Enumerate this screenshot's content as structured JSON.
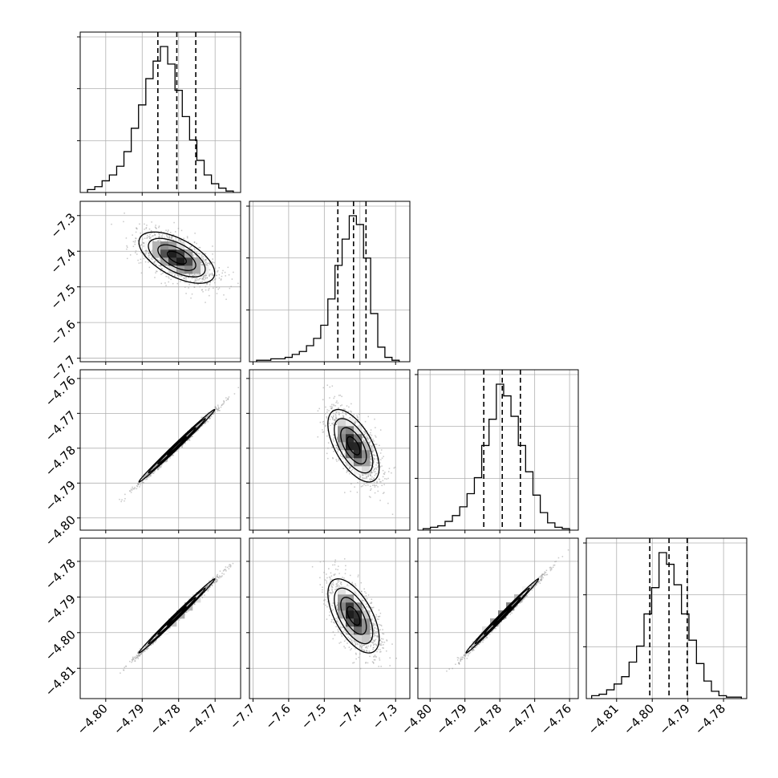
{
  "colors": {
    "ink": "#000000",
    "grid": "#b0b0b0",
    "scatter": "#9a9a9a",
    "background": "#ffffff"
  },
  "chart_data": {
    "type": "corner",
    "grid": true,
    "parameters": [
      {
        "range": [
          -4.807,
          -4.763
        ],
        "ticks": [
          -4.8,
          -4.79,
          -4.78,
          -4.77
        ],
        "tick_labels": [
          "−4.80",
          "−4.79",
          "−4.78",
          "−4.77"
        ],
        "mean": -4.7805,
        "sd": 0.0052,
        "quantiles": [
          -4.7857,
          -4.7805,
          -4.7753
        ],
        "histogram": {
          "bins": 20,
          "range": [
            -4.805,
            -4.765
          ],
          "counts": [
            2,
            4,
            8,
            12,
            18,
            28,
            44,
            60,
            78,
            90,
            100,
            88,
            70,
            52,
            36,
            22,
            12,
            6,
            3,
            1
          ]
        }
      },
      {
        "range": [
          -7.71,
          -7.26
        ],
        "ticks": [
          -7.7,
          -7.6,
          -7.5,
          -7.4,
          -7.3
        ],
        "tick_labels": [
          "−7.7",
          "−7.6",
          "−7.5",
          "−7.4",
          "−7.3"
        ],
        "mean": -7.418,
        "sd": 0.036,
        "quantiles": [
          -7.462,
          -7.418,
          -7.383
        ],
        "histogram": {
          "bins": 20,
          "range": [
            -7.69,
            -7.29
          ],
          "counts": [
            1,
            1,
            2,
            2,
            3,
            5,
            7,
            11,
            16,
            25,
            43,
            66,
            84,
            100,
            94,
            71,
            33,
            10,
            3,
            1
          ]
        }
      },
      {
        "range": [
          -4.8035,
          -4.7575
        ],
        "ticks": [
          -4.8,
          -4.79,
          -4.78,
          -4.77,
          -4.76
        ],
        "tick_labels": [
          "−4.80",
          "−4.79",
          "−4.78",
          "−4.77",
          "−4.76"
        ],
        "mean": -4.7793,
        "sd": 0.0052,
        "quantiles": [
          -4.7846,
          -4.7793,
          -4.7741
        ],
        "histogram": {
          "bins": 20,
          "range": [
            -4.802,
            -4.76
          ],
          "counts": [
            1,
            2,
            3,
            6,
            10,
            16,
            25,
            36,
            58,
            76,
            100,
            92,
            78,
            58,
            40,
            24,
            12,
            5,
            2,
            1
          ]
        }
      },
      {
        "range": [
          -4.8185,
          -4.7735
        ],
        "ticks": [
          -4.81,
          -4.8,
          -4.79,
          -4.78
        ],
        "tick_labels": [
          "−4.81",
          "−4.80",
          "−4.79",
          "−4.78"
        ],
        "mean": -4.7953,
        "sd": 0.0052,
        "quantiles": [
          -4.8007,
          -4.7953,
          -4.7902
        ],
        "histogram": {
          "bins": 20,
          "range": [
            -4.817,
            -4.775
          ],
          "counts": [
            2,
            3,
            6,
            10,
            15,
            25,
            36,
            58,
            76,
            100,
            92,
            78,
            58,
            40,
            24,
            12,
            5,
            2,
            1,
            1
          ]
        }
      }
    ],
    "correlations": {
      "1-0": -0.6,
      "2-0": 0.995,
      "2-1": -0.6,
      "3-0": 0.995,
      "3-1": -0.6,
      "3-2": 0.995
    },
    "samples": 4000,
    "contour_levels": [
      0.5,
      1.0,
      1.5,
      2.0
    ]
  }
}
